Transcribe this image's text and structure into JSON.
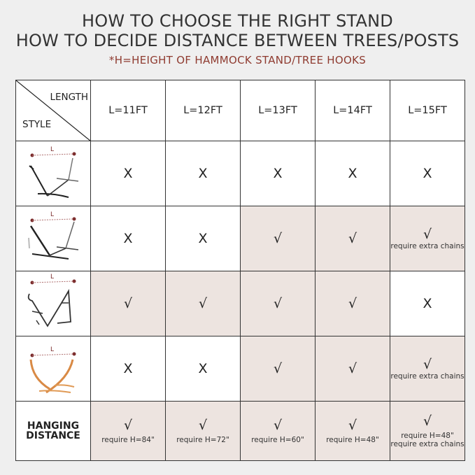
{
  "header": {
    "title_line1": "HOW TO CHOOSE THE RIGHT STAND",
    "title_line2": "HOW TO DECIDE DISTANCE BETWEEN TREES/POSTS",
    "subtitle": "*H=HEIGHT OF HAMMOCK STAND/TREE HOOKS"
  },
  "colors": {
    "shaded_cell": "#ede4e0",
    "subtitle": "#8f3b30",
    "background": "#efefef"
  },
  "table": {
    "corner_top": "LENGTH",
    "corner_bottom": "STYLE",
    "columns": [
      "L=11FT",
      "L=12FT",
      "L=13FT",
      "L=14FT",
      "L=15FT"
    ],
    "rows": [
      {
        "style_icon": "steel-stand-type-1-icon",
        "icon_label": "L",
        "cells": [
          {
            "mark": "X",
            "note": "",
            "shaded": false
          },
          {
            "mark": "X",
            "note": "",
            "shaded": false
          },
          {
            "mark": "X",
            "note": "",
            "shaded": false
          },
          {
            "mark": "X",
            "note": "",
            "shaded": false
          },
          {
            "mark": "X",
            "note": "",
            "shaded": false
          }
        ]
      },
      {
        "style_icon": "steel-stand-type-2-icon",
        "icon_label": "L",
        "cells": [
          {
            "mark": "X",
            "note": "",
            "shaded": false
          },
          {
            "mark": "X",
            "note": "",
            "shaded": false
          },
          {
            "mark": "√",
            "note": "",
            "shaded": true
          },
          {
            "mark": "√",
            "note": "",
            "shaded": true
          },
          {
            "mark": "√",
            "note": "require extra chains",
            "shaded": true
          }
        ]
      },
      {
        "style_icon": "portable-stand-icon",
        "icon_label": "L",
        "cells": [
          {
            "mark": "√",
            "note": "",
            "shaded": true
          },
          {
            "mark": "√",
            "note": "",
            "shaded": true
          },
          {
            "mark": "√",
            "note": "",
            "shaded": true
          },
          {
            "mark": "√",
            "note": "",
            "shaded": true
          },
          {
            "mark": "X",
            "note": "",
            "shaded": false
          }
        ]
      },
      {
        "style_icon": "wooden-arc-stand-icon",
        "icon_label": "L",
        "cells": [
          {
            "mark": "X",
            "note": "",
            "shaded": false
          },
          {
            "mark": "X",
            "note": "",
            "shaded": false
          },
          {
            "mark": "√",
            "note": "",
            "shaded": true
          },
          {
            "mark": "√",
            "note": "",
            "shaded": true
          },
          {
            "mark": "√",
            "note": "require extra chains",
            "shaded": true
          }
        ]
      }
    ],
    "hanging_row": {
      "label_line1": "HANGING",
      "label_line2": "DISTANCE",
      "cells": [
        {
          "mark": "√",
          "note": "require H=84\"",
          "note2": "",
          "shaded": true
        },
        {
          "mark": "√",
          "note": "require H=72\"",
          "note2": "",
          "shaded": true
        },
        {
          "mark": "√",
          "note": "require H=60\"",
          "note2": "",
          "shaded": true
        },
        {
          "mark": "√",
          "note": "require H=48\"",
          "note2": "",
          "shaded": true
        },
        {
          "mark": "√",
          "note": "require H=48\"",
          "note2": "require extra chains",
          "shaded": true
        }
      ]
    }
  }
}
